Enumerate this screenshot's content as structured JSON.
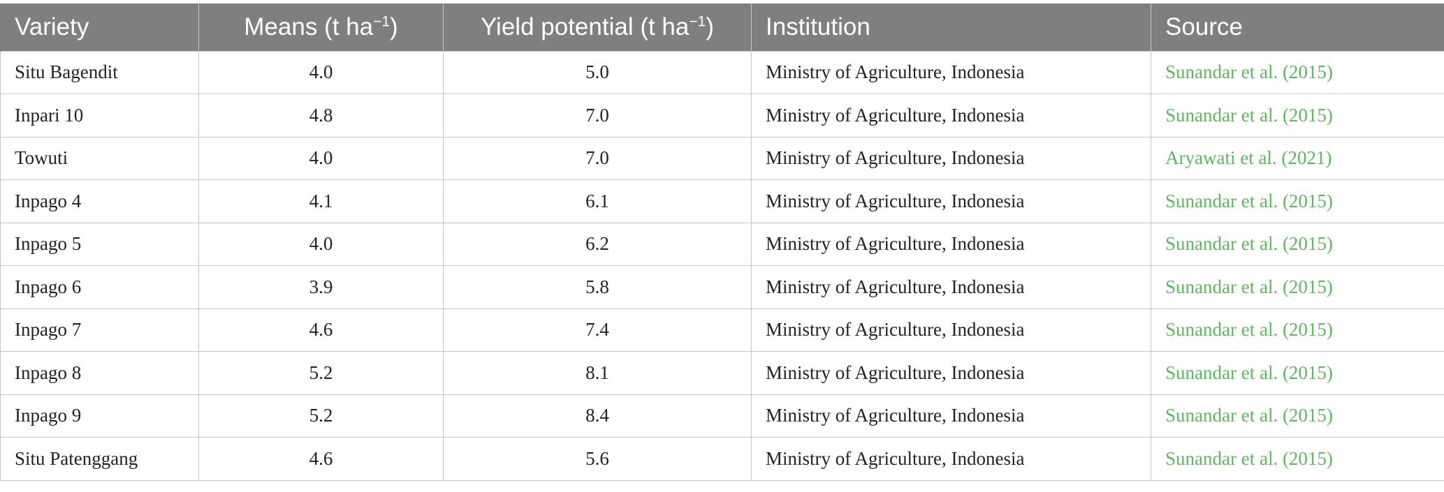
{
  "table": {
    "headers": {
      "variety": "Variety",
      "means": "Means (t ha",
      "means_sup": "−1",
      "means_close": ")",
      "yield": "Yield potential (t ha",
      "yield_sup": "−1",
      "yield_close": ")",
      "institution": "Institution",
      "source": "Source"
    },
    "rows": [
      {
        "variety": "Situ Bagendit",
        "means": "4.0",
        "yield": "5.0",
        "institution": "Ministry of Agriculture, Indonesia",
        "source": "Sunandar et al. (2015)"
      },
      {
        "variety": "Inpari 10",
        "means": "4.8",
        "yield": "7.0",
        "institution": "Ministry of Agriculture, Indonesia",
        "source": "Sunandar et al. (2015)"
      },
      {
        "variety": "Towuti",
        "means": "4.0",
        "yield": "7.0",
        "institution": "Ministry of Agriculture, Indonesia",
        "source": "Aryawati et al. (2021)"
      },
      {
        "variety": "Inpago 4",
        "means": "4.1",
        "yield": "6.1",
        "institution": "Ministry of Agriculture, Indonesia",
        "source": "Sunandar et al. (2015)"
      },
      {
        "variety": "Inpago 5",
        "means": "4.0",
        "yield": "6.2",
        "institution": "Ministry of Agriculture, Indonesia",
        "source": "Sunandar et al. (2015)"
      },
      {
        "variety": "Inpago 6",
        "means": "3.9",
        "yield": "5.8",
        "institution": "Ministry of Agriculture, Indonesia",
        "source": "Sunandar et al. (2015)"
      },
      {
        "variety": "Inpago 7",
        "means": "4.6",
        "yield": "7.4",
        "institution": "Ministry of Agriculture, Indonesia",
        "source": "Sunandar et al. (2015)"
      },
      {
        "variety": "Inpago 8",
        "means": "5.2",
        "yield": "8.1",
        "institution": "Ministry of Agriculture, Indonesia",
        "source": "Sunandar et al. (2015)"
      },
      {
        "variety": "Inpago 9",
        "means": "5.2",
        "yield": "8.4",
        "institution": "Ministry of Agriculture, Indonesia",
        "source": "Sunandar et al. (2015)"
      },
      {
        "variety": "Situ Patenggang",
        "means": "4.6",
        "yield": "5.6",
        "institution": "Ministry of Agriculture, Indonesia",
        "source": "Sunandar et al. (2015)"
      }
    ]
  },
  "colors": {
    "header_background": "#7f7f7f",
    "header_text": "#ffffff",
    "link_text": "#5cb85c",
    "body_text": "#222222",
    "grid_line": "#c4c4c4"
  }
}
